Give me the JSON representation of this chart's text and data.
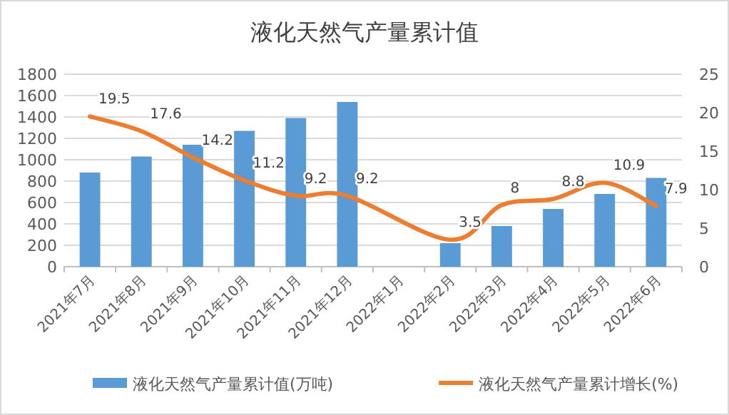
{
  "chart_data": {
    "type": "bar",
    "title": "液化天然气产量累计值",
    "categories": [
      "2021年7月",
      "2021年8月",
      "2021年9月",
      "2021年10月",
      "2021年11月",
      "2021年12月",
      "2022年1月",
      "2022年2月",
      "2022年3月",
      "2022年4月",
      "2022年5月",
      "2022年6月"
    ],
    "series": [
      {
        "name": "液化天然气产量累计值(万吨)",
        "color": "#5b9bd5",
        "values": [
          880,
          1030,
          1140,
          1270,
          1390,
          1540,
          null,
          220,
          380,
          540,
          680,
          830
        ]
      },
      {
        "name": "液化天然气产量累计增长(%)",
        "type": "line",
        "axis": "y2",
        "color": "#ed7d31",
        "values": [
          19.5,
          17.6,
          14.2,
          11.2,
          9.2,
          9.2,
          null,
          3.5,
          8,
          8.8,
          10.9,
          7.9
        ],
        "value_labels": [
          "19.5",
          "17.6",
          "14.2",
          "11.2",
          "9.2",
          "9.2",
          null,
          "3.5",
          "8",
          "8.8",
          "10.9",
          "7.9"
        ]
      }
    ],
    "ylim": [
      0,
      1800
    ],
    "yticks": [
      0,
      200,
      400,
      600,
      800,
      1000,
      1200,
      1400,
      1600,
      1800
    ],
    "y2lim": [
      0,
      25
    ],
    "y2ticks": [
      0,
      5,
      10,
      15,
      20,
      25
    ],
    "grid": "y",
    "legend": "bottom",
    "marker": "none",
    "line_style": "solid"
  }
}
